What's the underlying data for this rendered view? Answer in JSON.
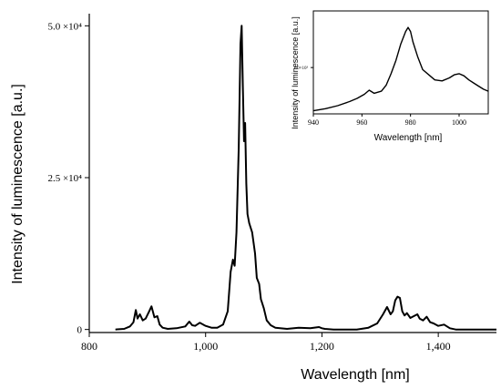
{
  "chart_data": [
    {
      "type": "line",
      "xlabel": "Wavelength [nm]",
      "ylabel": "Intensity of luminescence [a.u.]",
      "xlim": [
        800,
        1500
      ],
      "ylim": [
        -500,
        52000
      ],
      "x_ticks": [
        {
          "value": 800,
          "label": "800"
        },
        {
          "value": 1000,
          "label": "1,000"
        },
        {
          "value": 1200,
          "label": "1,200"
        },
        {
          "value": 1400,
          "label": "1,400"
        }
      ],
      "y_ticks": [
        {
          "value": 0,
          "label": "0"
        },
        {
          "value": 25000,
          "label": "2.5 ×10⁴"
        },
        {
          "value": 50000,
          "label": "5.0 ×10⁴"
        }
      ],
      "series": [
        {
          "x": [
            845,
            860,
            870,
            876,
            880,
            883,
            887,
            892,
            897,
            903,
            907,
            912,
            917,
            921,
            926,
            935,
            950,
            965,
            972,
            977,
            982,
            990,
            1000,
            1010,
            1020,
            1030,
            1038,
            1043,
            1047,
            1050,
            1053,
            1057,
            1060,
            1062,
            1064,
            1066,
            1068,
            1070,
            1072,
            1075,
            1080,
            1085,
            1088,
            1092,
            1095,
            1100,
            1105,
            1112,
            1120,
            1140,
            1160,
            1180,
            1195,
            1200,
            1205,
            1220,
            1260,
            1280,
            1295,
            1305,
            1312,
            1318,
            1322,
            1326,
            1330,
            1334,
            1338,
            1342,
            1346,
            1352,
            1358,
            1364,
            1368,
            1374,
            1380,
            1386,
            1392,
            1400,
            1410,
            1420,
            1430,
            1445,
            1460,
            1475,
            1490,
            1500
          ],
          "y": [
            0,
            100,
            500,
            1200,
            3200,
            1800,
            2500,
            1500,
            1800,
            3000,
            3800,
            2000,
            2200,
            800,
            300,
            100,
            200,
            500,
            1300,
            700,
            600,
            1100,
            600,
            300,
            300,
            800,
            3000,
            9500,
            11500,
            10500,
            16000,
            30000,
            47000,
            50000,
            40000,
            31000,
            34000,
            24000,
            19000,
            17500,
            16000,
            12500,
            8500,
            7500,
            5000,
            3500,
            1500,
            700,
            300,
            100,
            300,
            200,
            400,
            200,
            100,
            0,
            0,
            300,
            1000,
            2500,
            3700,
            2500,
            3000,
            4800,
            5400,
            5200,
            3000,
            2300,
            2700,
            1900,
            2200,
            2500,
            1800,
            1500,
            2100,
            1200,
            1000,
            600,
            800,
            200,
            0,
            0,
            0,
            0,
            0,
            0
          ]
        }
      ],
      "grid": false,
      "legend": "none"
    },
    {
      "type": "line",
      "xlabel": "Wavelength [nm]",
      "ylabel": "Intensity of luminescence [a.u.]",
      "xlim": [
        940,
        1012
      ],
      "ylim": [
        0,
        1
      ],
      "x_ticks": [
        {
          "value": 940,
          "label": "940"
        },
        {
          "value": 960,
          "label": "960"
        },
        {
          "value": 980,
          "label": "980"
        },
        {
          "value": 1000,
          "label": "1000"
        }
      ],
      "y_ticks": [
        {
          "value": 0.45,
          "label": "1.0×10³"
        }
      ],
      "series": [
        {
          "x": [
            940,
            945,
            950,
            955,
            958,
            961,
            963,
            965,
            968,
            970,
            972,
            974,
            976,
            978,
            979,
            980,
            981,
            983,
            985,
            988,
            990,
            993,
            996,
            998,
            1000,
            1002,
            1004,
            1006,
            1008,
            1010,
            1012
          ],
          "y": [
            0.03,
            0.05,
            0.08,
            0.12,
            0.15,
            0.19,
            0.23,
            0.2,
            0.22,
            0.28,
            0.39,
            0.52,
            0.68,
            0.8,
            0.84,
            0.8,
            0.7,
            0.55,
            0.43,
            0.37,
            0.33,
            0.32,
            0.35,
            0.38,
            0.39,
            0.37,
            0.33,
            0.3,
            0.27,
            0.24,
            0.22
          ]
        }
      ],
      "grid": false,
      "legend": "none"
    }
  ]
}
